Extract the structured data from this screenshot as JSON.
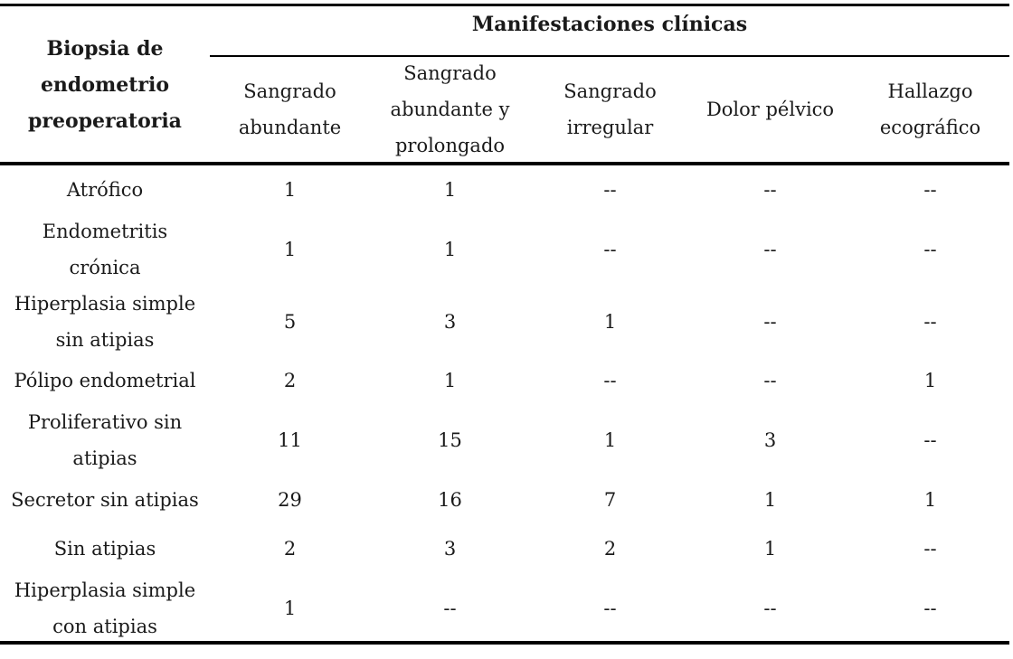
{
  "table": {
    "row_header": "Biopsia de\nendometrio\npreoperatoria",
    "group_header": "Manifestaciones clínicas",
    "columns": [
      "Sangrado\nabundante",
      "Sangrado\nabundante y\nprolongado",
      "Sangrado\nirregular",
      "Dolor pélvico",
      "Hallazgo\necográfico"
    ],
    "rows": [
      {
        "label": "Atrófico",
        "values": [
          "1",
          "1",
          "--",
          "--",
          "--"
        ]
      },
      {
        "label": "Endometritis\ncrónica",
        "values": [
          "1",
          "1",
          "--",
          "--",
          "--"
        ]
      },
      {
        "label": "Hiperplasia simple\nsin atipias",
        "values": [
          "5",
          "3",
          "1",
          "--",
          "--"
        ]
      },
      {
        "label": "Pólipo endometrial",
        "values": [
          "2",
          "1",
          "--",
          "--",
          "1"
        ]
      },
      {
        "label": "Proliferativo sin\natipias",
        "values": [
          "11",
          "15",
          "1",
          "3",
          "--"
        ]
      },
      {
        "label": "Secretor sin atipias",
        "values": [
          "29",
          "16",
          "7",
          "1",
          "1"
        ]
      },
      {
        "label": "Sin atipias",
        "values": [
          "2",
          "3",
          "2",
          "1",
          "--"
        ]
      },
      {
        "label": "Hiperplasia simple\ncon atipias",
        "values": [
          "1",
          "--",
          "--",
          "--",
          "--"
        ]
      }
    ]
  }
}
